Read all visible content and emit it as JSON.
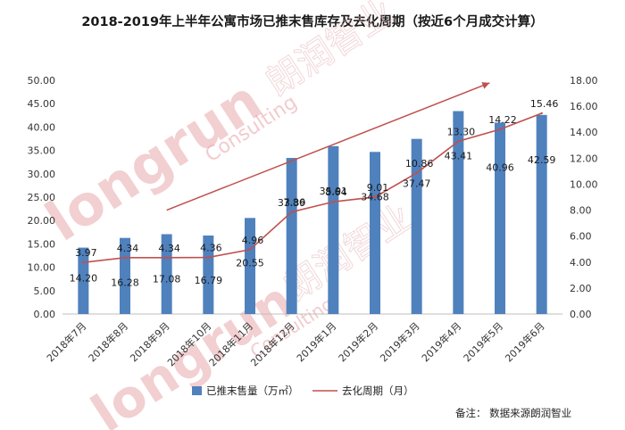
{
  "chart_data": {
    "type": "bar",
    "title": "2018-2019年上半年公寓市场已推末售库存及去化周期（按近6个月成交计算）",
    "categories": [
      "2018年7月",
      "2018年8月",
      "2018年9月",
      "2018年10月",
      "2018年11月",
      "2018年12月",
      "2019年1月",
      "2019年2月",
      "2019年3月",
      "2019年4月",
      "2019年5月",
      "2019年6月"
    ],
    "series": [
      {
        "name": "已推末售量（万㎡）",
        "type": "bar",
        "axis": "left",
        "color": "#4f81bd",
        "values": [
          14.2,
          16.28,
          17.08,
          16.79,
          20.55,
          33.39,
          35.91,
          34.68,
          37.47,
          43.41,
          40.96,
          42.59
        ],
        "labels": [
          "14.20",
          "16.28",
          "17.08",
          "16.79",
          "20.55",
          "33.39",
          "35.91",
          "34.68",
          "37.47",
          "43.41",
          "40.96",
          "42.59"
        ]
      },
      {
        "name": "去化周期（月）",
        "type": "line",
        "axis": "right",
        "color": "#c0504d",
        "values": [
          3.97,
          4.34,
          4.34,
          4.36,
          4.96,
          7.86,
          8.64,
          9.01,
          10.86,
          13.3,
          14.22,
          15.46
        ],
        "labels": [
          "3.97",
          "4.34",
          "4.34",
          "4.36",
          "4.96",
          "7.86",
          "8.64",
          "9.01",
          "10.86",
          "13.30",
          "14.22",
          "15.46"
        ]
      }
    ],
    "ylim_left": [
      0,
      50
    ],
    "ylim_right": [
      0,
      18
    ],
    "yticks_left": [
      "0.00",
      "5.00",
      "10.00",
      "15.00",
      "20.00",
      "25.00",
      "30.00",
      "35.00",
      "40.00",
      "45.00",
      "50.00"
    ],
    "yticks_right": [
      "0.00",
      "2.00",
      "4.00",
      "6.00",
      "8.00",
      "10.00",
      "12.00",
      "14.00",
      "16.00",
      "18.00"
    ],
    "trend_arrow": {
      "from": {
        "category": "2018年9月",
        "right_value": 8.0
      },
      "to": {
        "category": "2019年4月",
        "right_value": 17.8
      },
      "color": "#c0504d"
    },
    "legend_position": "bottom",
    "grid": false
  },
  "note": "备注：  数据来源朗润智业",
  "watermark": {
    "brand": "longrun",
    "sub": "Consulting",
    "cn": "朗润智业"
  }
}
